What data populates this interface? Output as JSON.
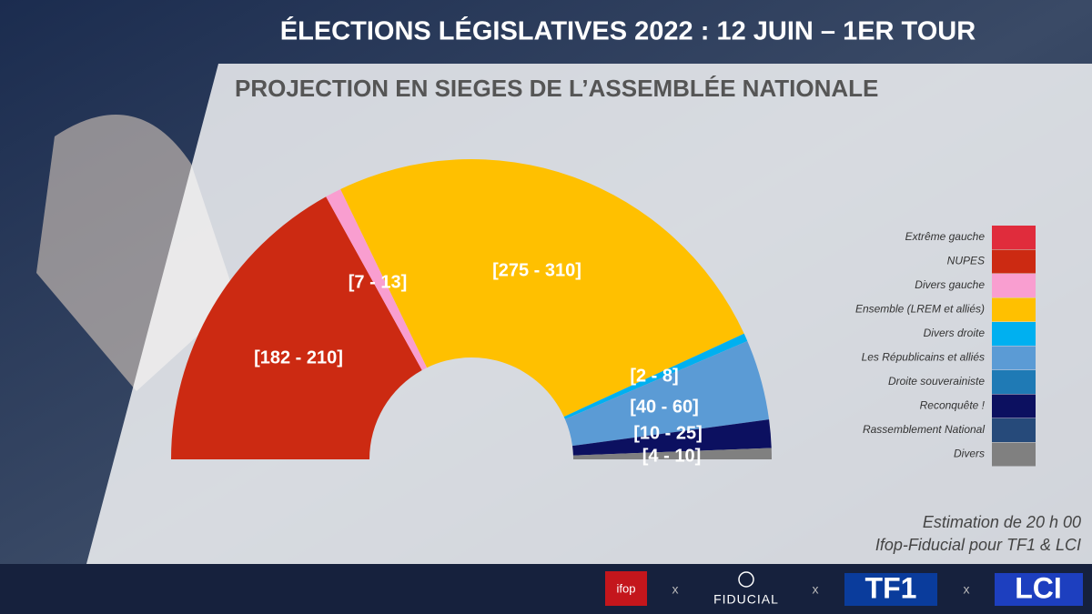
{
  "chart_data": {
    "type": "hemicycle",
    "title": "ÉLECTIONS LÉGISLATIVES 2022 : 12 JUIN – 1ER TOUR",
    "subtitle": "PROJECTION EN SIEGES DE L’ASSEMBLÉE NATIONALE",
    "series": [
      {
        "name": "Extrême gauche",
        "color": "#e02c3c"
      },
      {
        "name": "NUPES",
        "color": "#cc2a12",
        "low": 182,
        "high": 210,
        "label": "[182 - 210]"
      },
      {
        "name": "Divers gauche",
        "color": "#f99ed0",
        "low": 7,
        "high": 13,
        "label": "[7 - 13]"
      },
      {
        "name": "Ensemble (LREM et alliés)",
        "color": "#ffc000",
        "low": 275,
        "high": 310,
        "label": "[275 - 310]"
      },
      {
        "name": "Divers droite",
        "color": "#00b0f0",
        "low": 2,
        "high": 8,
        "label": "[2 - 8]"
      },
      {
        "name": "Les Républicains et alliés",
        "color": "#5b9bd5",
        "low": 40,
        "high": 60,
        "label": "[40 - 60]"
      },
      {
        "name": "Droite souverainiste",
        "color": "#1f7ab5"
      },
      {
        "name": "Reconquête !",
        "color": "#0c1060",
        "low": 10,
        "high": 25,
        "label": "[10 - 25]"
      },
      {
        "name": "Rassemblement National",
        "color": "#264a7a"
      },
      {
        "name": "Divers",
        "color": "#808080",
        "low": 4,
        "high": 10,
        "label": "[4 - 10]"
      }
    ],
    "notes": [
      "Estimation de 20 h 00",
      "Ifop-Fiducial pour TF1 & LCI"
    ]
  },
  "footer": {
    "logos": [
      "ifop",
      "FIDUCIAL",
      "TF1",
      "LCI"
    ],
    "separator": "x"
  }
}
